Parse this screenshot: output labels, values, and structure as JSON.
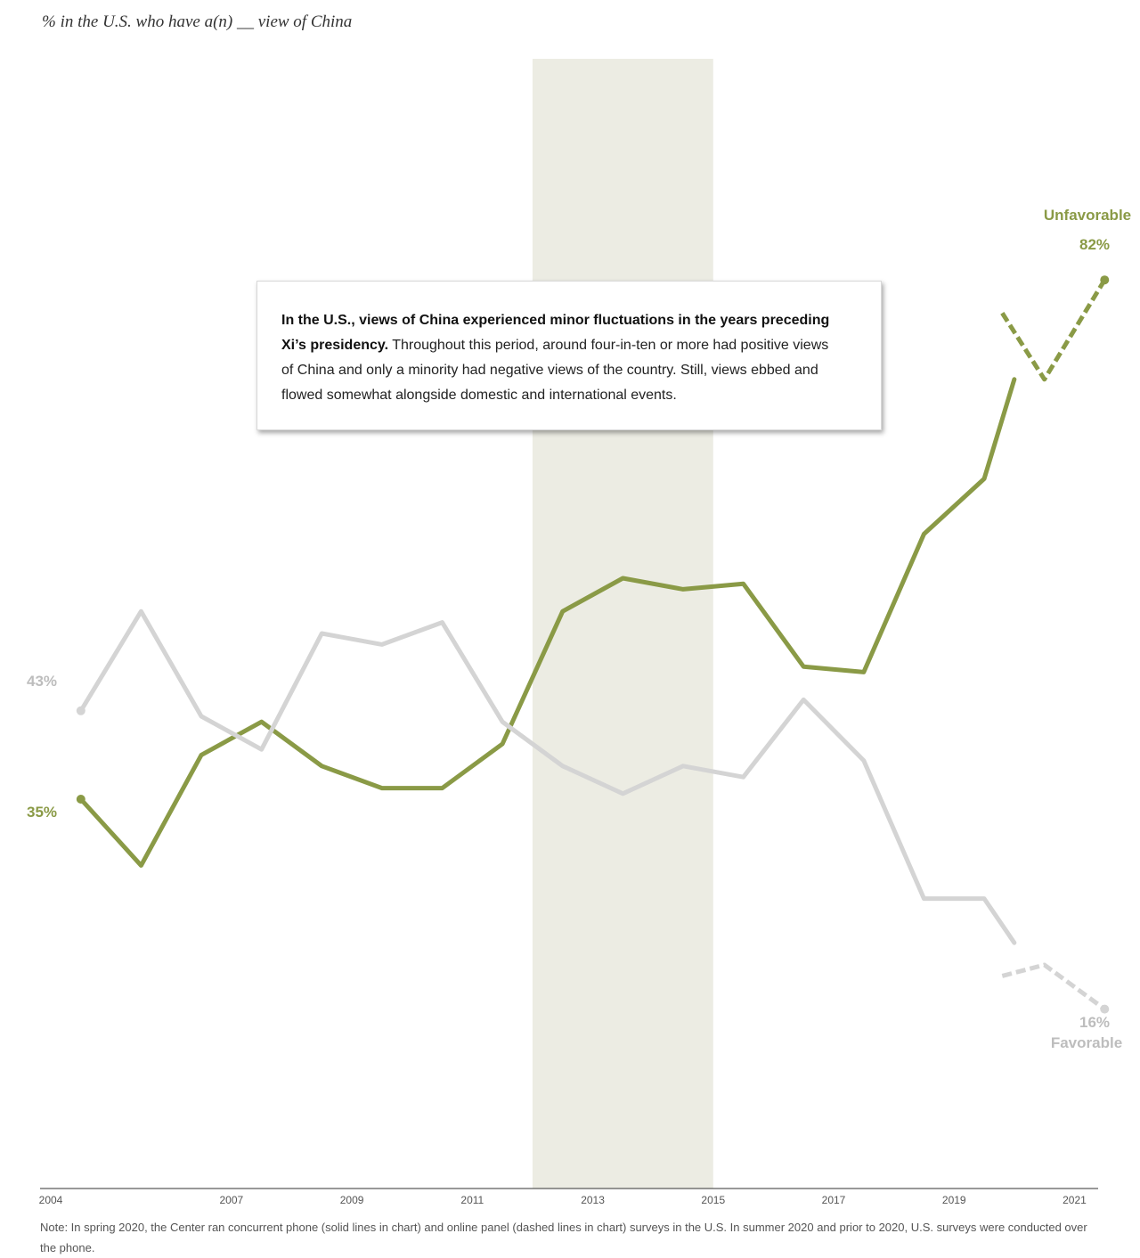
{
  "subtitle": "% in the U.S. who have a(n) __ view of China",
  "callout": {
    "bold": "In the U.S., views of China experienced minor fluctuations in the years preceding Xi’s presidency.",
    "text": " Throughout this period, around four-in-ten or more had positive views of China and only a minority had negative views of the country. Still, views ebbed and flowed somewhat alongside domestic and international events."
  },
  "note": "Note: In spring 2020, the Center ran concurrent phone (solid lines in chart) and online panel (dashed lines in chart) surveys in the U.S. In summer 2020 and prior to 2020, U.S. surveys were conducted over the phone.",
  "colors": {
    "unfavorable": "#8a9a46",
    "favorable": "#d4d4d4",
    "favorable_label": "#bdbdbd",
    "shade": "#ecece3"
  },
  "chart_data": {
    "type": "line",
    "title": "% in the U.S. who have a(n) __ view of China",
    "x_tick_labels": [
      "2004",
      "2007",
      "2009",
      "2011",
      "2013",
      "2015",
      "2017",
      "2019",
      "2021"
    ],
    "xlim": [
      2004,
      2021.2
    ],
    "ylim": [
      0,
      100
    ],
    "grid": false,
    "shaded_period": {
      "from": 2012.0,
      "to": 2015.0
    },
    "series": [
      {
        "name": "Unfavorable",
        "color": "#8a9a46",
        "solid": {
          "x": [
            2004.5,
            2005.5,
            2006.5,
            2007.5,
            2008.5,
            2009.5,
            2010.5,
            2011.5,
            2012.5,
            2013.5,
            2014.5,
            2015.5,
            2016.5,
            2017.5,
            2018.5,
            2019.5,
            2020.0
          ],
          "y": [
            35,
            29,
            39,
            42,
            38,
            36,
            36,
            40,
            52,
            55,
            54,
            54.5,
            47,
            46.5,
            59,
            64,
            73
          ]
        },
        "dashed": {
          "x": [
            2019.8,
            2020.5,
            2021.5
          ],
          "y": [
            79,
            73,
            82
          ]
        },
        "start_label": "35%",
        "end_label": "82%",
        "end_name": "Unfavorable"
      },
      {
        "name": "Favorable",
        "color": "#d4d4d4",
        "solid": {
          "x": [
            2004.5,
            2005.5,
            2006.5,
            2007.5,
            2008.5,
            2009.5,
            2010.5,
            2011.5,
            2012.5,
            2013.5,
            2014.5,
            2015.5,
            2016.5,
            2017.5,
            2018.5,
            2019.5,
            2020.0
          ],
          "y": [
            43,
            52,
            42.5,
            39.5,
            50,
            49,
            51,
            42,
            38,
            35.5,
            38,
            37,
            44,
            38.5,
            26,
            26,
            22
          ]
        },
        "dashed": {
          "x": [
            2019.8,
            2020.5,
            2021.5
          ],
          "y": [
            19,
            20,
            16
          ]
        },
        "start_label": "43%",
        "end_label": "16%",
        "end_name": "Favorable"
      }
    ]
  }
}
